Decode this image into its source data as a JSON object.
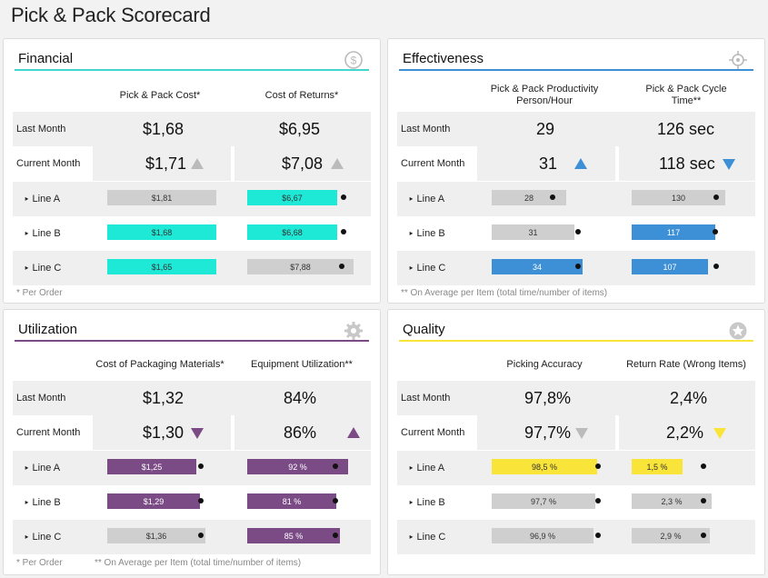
{
  "page_title": "Pick & Pack Scorecard",
  "colors": {
    "teal": "#1de9d6",
    "gray": "#cfcfcf",
    "blue": "#3d8fd6",
    "purple": "#7b4b86",
    "yellow": "#f9e43a",
    "tri_gray": "#bbbbbb"
  },
  "row_labels": {
    "last": "Last Month",
    "current": "Current Month",
    "a": "Line A",
    "b": "Line B",
    "c": "Line C"
  },
  "panels": {
    "financial": {
      "title": "Financial",
      "icon": "dollar-icon",
      "accent": "#43d6cf",
      "col1": "Pick & Pack Cost*",
      "col2": "Cost of Returns*",
      "last1": "$1,68",
      "last2": "$6,95",
      "cur1": "$1,71",
      "cur2": "$7,08",
      "a1": "$1,81",
      "a2": "$6,67",
      "b1": "$1,68",
      "b2": "$6,68",
      "c1": "$1,65",
      "c2": "$7,88",
      "foot1": "* Per Order",
      "foot2": ""
    },
    "effectiveness": {
      "title": "Effectiveness",
      "icon": "target-icon",
      "accent": "#3d8fd6",
      "col1": "Pick & Pack Productivity Person/Hour",
      "col2": "Pick & Pack Cycle Time**",
      "last1": "29",
      "last2": "126 sec",
      "cur1": "31",
      "cur2": "118 sec",
      "a1": "28",
      "a2": "130",
      "b1": "31",
      "b2": "117",
      "c1": "34",
      "c2": "107",
      "foot1": "** On Average per Item (total time/number of items)",
      "foot2": ""
    },
    "utilization": {
      "title": "Utilization",
      "icon": "gear-icon",
      "accent": "#7b4b86",
      "col1": "Cost of Packaging Materials*",
      "col2": "Equipment Utilization**",
      "last1": "$1,32",
      "last2": "84%",
      "cur1": "$1,30",
      "cur2": "86%",
      "a1": "$1,25",
      "a2": "92 %",
      "b1": "$1,29",
      "b2": "81 %",
      "c1": "$1,36",
      "c2": "85 %",
      "foot1": "* Per Order",
      "foot2": "** On Average per Item (total time/number of items)"
    },
    "quality": {
      "title": "Quality",
      "icon": "star-icon",
      "accent": "#f9e43a",
      "col1": "Picking Accuracy",
      "col2": "Return Rate (Wrong Items)",
      "last1": "97,8%",
      "last2": "2,4%",
      "cur1": "97,7%",
      "cur2": "2,2%",
      "a1": "98,5 %",
      "a2": "1,5 %",
      "b1": "97,7 %",
      "b2": "2,3 %",
      "c1": "96,9 %",
      "c2": "2,9 %",
      "foot1": "",
      "foot2": ""
    }
  }
}
